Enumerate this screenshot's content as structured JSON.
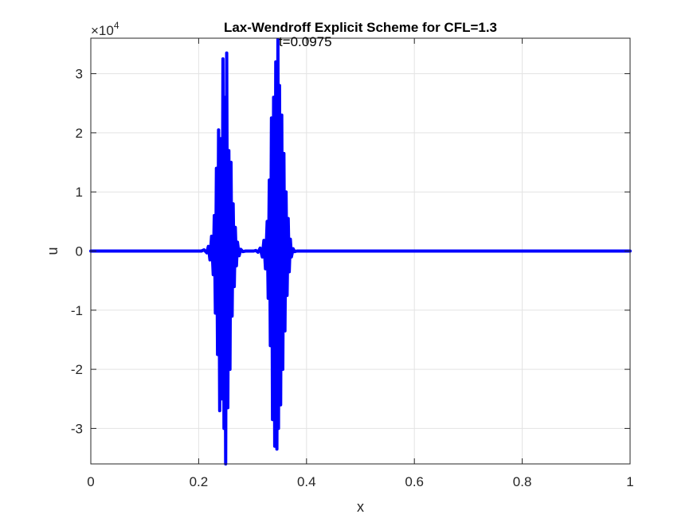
{
  "chart_data": {
    "type": "line",
    "title": "Lax-Wendroff Explicit Scheme for CFL=1.3",
    "xlabel": "x",
    "ylabel": "u",
    "xlim": [
      0,
      1
    ],
    "ylim": [
      -36000,
      36000
    ],
    "y_exponent_label": "×10",
    "y_exponent_power": "4",
    "x_ticks": [
      0,
      0.2,
      0.4,
      0.6,
      0.8,
      1
    ],
    "x_tick_labels": [
      "0",
      "0.2",
      "0.4",
      "0.6",
      "0.8",
      "1"
    ],
    "y_ticks": [
      -30000,
      -20000,
      -10000,
      0,
      10000,
      20000,
      30000
    ],
    "y_tick_labels": [
      "-3",
      "-2",
      "-1",
      "0",
      "1",
      "2",
      "3"
    ],
    "grid": true,
    "series_color": "#0000ff",
    "annotation": {
      "text": "t=0.0975",
      "x": 0.35,
      "y": 36000
    },
    "series": [
      {
        "x": [
          0,
          0.205,
          0.21,
          0.215,
          0.218,
          0.221,
          0.224,
          0.227,
          0.229,
          0.231,
          0.233,
          0.235,
          0.237,
          0.239,
          0.241,
          0.243,
          0.245,
          0.247,
          0.248,
          0.25,
          0.252,
          0.254,
          0.256,
          0.258,
          0.26,
          0.262,
          0.264,
          0.266,
          0.268,
          0.27,
          0.272,
          0.275,
          0.278,
          0.282,
          0.287,
          0.292,
          0.297,
          0.302,
          0.306,
          0.31,
          0.314,
          0.318,
          0.321,
          0.324,
          0.327,
          0.329,
          0.331,
          0.333,
          0.335,
          0.337,
          0.339,
          0.341,
          0.343,
          0.345,
          0.347,
          0.348,
          0.35,
          0.352,
          0.354,
          0.356,
          0.358,
          0.36,
          0.362,
          0.364,
          0.366,
          0.368,
          0.37,
          0.372,
          0.375,
          0.378,
          0.382,
          0.39,
          1.0
        ],
        "y": [
          0,
          0,
          200,
          -300,
          800,
          -1500,
          2500,
          -4000,
          6000,
          -10500,
          14000,
          -17500,
          20500,
          -27000,
          19000,
          -25000,
          32500,
          -30000,
          26000,
          -36000,
          33500,
          -26500,
          17000,
          -20000,
          15000,
          -11000,
          8000,
          -6000,
          4000,
          -2500,
          1500,
          -800,
          300,
          -100,
          0,
          0,
          0,
          0,
          100,
          -200,
          500,
          -1000,
          1800,
          -3000,
          5000,
          -8000,
          12000,
          -16000,
          22500,
          -28500,
          26000,
          -33000,
          32000,
          -33500,
          35800,
          -30000,
          28000,
          -26000,
          23000,
          -20000,
          16500,
          -13500,
          10000,
          -7500,
          5500,
          -3500,
          2000,
          -1000,
          400,
          -100,
          0,
          0,
          0
        ]
      }
    ]
  }
}
